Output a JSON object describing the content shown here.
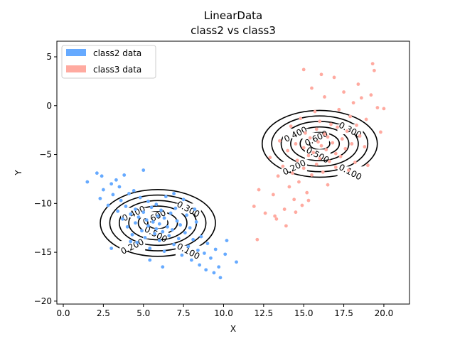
{
  "chart_data": {
    "type": "scatter",
    "title": "LinearData",
    "subtitle": "class2 vs  class3",
    "xlabel": "X",
    "ylabel": "Y",
    "xlim": [
      -0.4,
      21.6
    ],
    "ylim": [
      -20.3,
      6.6
    ],
    "xticks": [
      0.0,
      2.5,
      5.0,
      7.5,
      10.0,
      12.5,
      15.0,
      17.5,
      20.0
    ],
    "xtick_labels": [
      "0.0",
      "2.5",
      "5.0",
      "7.5",
      "10.0",
      "12.5",
      "15.0",
      "17.5",
      "20.0"
    ],
    "yticks": [
      -20,
      -15,
      -10,
      -5,
      0,
      5
    ],
    "ytick_labels": [
      "−20",
      "−15",
      "−10",
      "−5",
      "0",
      "5"
    ],
    "grid": false,
    "legend_position": "top-left",
    "series": [
      {
        "name": "class2 data",
        "color": "#66aaff",
        "points": [
          [
            1.5,
            -7.8
          ],
          [
            2.1,
            -6.9
          ],
          [
            2.3,
            -9.5
          ],
          [
            2.4,
            -7.2
          ],
          [
            2.5,
            -8.6
          ],
          [
            2.8,
            -10.2
          ],
          [
            3.0,
            -8.0
          ],
          [
            3.1,
            -9.1
          ],
          [
            3.3,
            -7.6
          ],
          [
            3.4,
            -10.8
          ],
          [
            3.5,
            -8.3
          ],
          [
            3.6,
            -9.7
          ],
          [
            3.7,
            -11.6
          ],
          [
            3.8,
            -7.1
          ],
          [
            3.9,
            -10.3
          ],
          [
            4.0,
            -12.4
          ],
          [
            4.1,
            -9.0
          ],
          [
            4.2,
            -11.1
          ],
          [
            4.3,
            -13.2
          ],
          [
            4.4,
            -8.7
          ],
          [
            4.5,
            -10.6
          ],
          [
            4.5,
            -12.0
          ],
          [
            4.6,
            -14.0
          ],
          [
            4.7,
            -11.4
          ],
          [
            4.8,
            -9.4
          ],
          [
            4.9,
            -12.8
          ],
          [
            5.0,
            -6.6
          ],
          [
            5.0,
            -10.9
          ],
          [
            5.1,
            -13.5
          ],
          [
            5.2,
            -11.7
          ],
          [
            5.3,
            -9.8
          ],
          [
            5.3,
            -12.3
          ],
          [
            5.4,
            -14.6
          ],
          [
            5.5,
            -10.4
          ],
          [
            5.6,
            -11.9
          ],
          [
            5.7,
            -13.1
          ],
          [
            5.8,
            -12.6
          ],
          [
            5.8,
            -10.1
          ],
          [
            5.9,
            -11.3
          ],
          [
            6.0,
            -12.1
          ],
          [
            6.0,
            -13.8
          ],
          [
            6.1,
            -10.7
          ],
          [
            6.2,
            -12.9
          ],
          [
            6.3,
            -11.5
          ],
          [
            6.3,
            -14.9
          ],
          [
            6.4,
            -9.3
          ],
          [
            6.5,
            -12.4
          ],
          [
            6.6,
            -13.3
          ],
          [
            6.7,
            -11.0
          ],
          [
            6.8,
            -12.7
          ],
          [
            6.9,
            -14.2
          ],
          [
            7.0,
            -10.5
          ],
          [
            7.1,
            -11.8
          ],
          [
            7.2,
            -13.6
          ],
          [
            7.3,
            -12.2
          ],
          [
            7.4,
            -15.3
          ],
          [
            7.5,
            -9.6
          ],
          [
            7.6,
            -13.0
          ],
          [
            7.7,
            -11.2
          ],
          [
            7.8,
            -14.4
          ],
          [
            7.9,
            -12.5
          ],
          [
            8.0,
            -15.8
          ],
          [
            8.1,
            -13.7
          ],
          [
            8.3,
            -11.9
          ],
          [
            8.4,
            -14.8
          ],
          [
            8.5,
            -16.3
          ],
          [
            8.6,
            -13.4
          ],
          [
            8.8,
            -15.1
          ],
          [
            8.9,
            -16.8
          ],
          [
            9.0,
            -14.1
          ],
          [
            9.2,
            -15.6
          ],
          [
            9.4,
            -17.1
          ],
          [
            9.5,
            -14.7
          ],
          [
            9.7,
            -16.5
          ],
          [
            9.8,
            -17.6
          ],
          [
            10.1,
            -15.2
          ],
          [
            10.2,
            -13.8
          ],
          [
            10.8,
            -16.0
          ],
          [
            6.2,
            -16.5
          ],
          [
            5.4,
            -15.8
          ],
          [
            4.2,
            -13.9
          ],
          [
            3.0,
            -14.6
          ],
          [
            6.9,
            -9.0
          ],
          [
            8.2,
            -10.6
          ]
        ]
      },
      {
        "name": "class3 data",
        "color": "#ffaaa0",
        "points": [
          [
            11.9,
            -10.3
          ],
          [
            12.1,
            -13.7
          ],
          [
            12.2,
            -8.6
          ],
          [
            12.6,
            -11.0
          ],
          [
            12.9,
            -5.3
          ],
          [
            13.1,
            -9.1
          ],
          [
            13.3,
            -11.6
          ],
          [
            13.4,
            -7.2
          ],
          [
            13.5,
            -3.6
          ],
          [
            13.7,
            -6.2
          ],
          [
            13.8,
            -10.6
          ],
          [
            13.9,
            -12.3
          ],
          [
            14.0,
            -4.6
          ],
          [
            14.1,
            -8.3
          ],
          [
            14.2,
            -2.1
          ],
          [
            14.3,
            -6.9
          ],
          [
            14.4,
            -9.6
          ],
          [
            14.5,
            -3.9
          ],
          [
            14.6,
            -5.6
          ],
          [
            14.7,
            -7.8
          ],
          [
            14.8,
            -1.3
          ],
          [
            14.9,
            -10.2
          ],
          [
            15.0,
            -4.3
          ],
          [
            15.0,
            -6.4
          ],
          [
            15.1,
            -2.8
          ],
          [
            15.2,
            -8.9
          ],
          [
            15.3,
            -5.1
          ],
          [
            15.4,
            -3.3
          ],
          [
            15.5,
            -7.1
          ],
          [
            15.5,
            1.8
          ],
          [
            15.6,
            -4.8
          ],
          [
            15.7,
            -0.6
          ],
          [
            15.8,
            -6.0
          ],
          [
            15.8,
            -2.4
          ],
          [
            15.9,
            -3.7
          ],
          [
            16.0,
            -5.4
          ],
          [
            16.0,
            -1.6
          ],
          [
            16.1,
            -4.1
          ],
          [
            16.2,
            -6.8
          ],
          [
            16.3,
            -2.9
          ],
          [
            16.3,
            0.9
          ],
          [
            16.4,
            -4.5
          ],
          [
            16.5,
            -3.2
          ],
          [
            16.5,
            -8.1
          ],
          [
            16.6,
            -5.7
          ],
          [
            16.7,
            -1.9
          ],
          [
            16.8,
            -3.8
          ],
          [
            16.9,
            2.9
          ],
          [
            17.0,
            -4.9
          ],
          [
            17.0,
            -6.3
          ],
          [
            17.1,
            -2.2
          ],
          [
            17.2,
            -0.4
          ],
          [
            17.3,
            -5.2
          ],
          [
            17.4,
            -3.4
          ],
          [
            17.5,
            1.4
          ],
          [
            17.6,
            -4.4
          ],
          [
            17.7,
            -2.6
          ],
          [
            17.8,
            -6.6
          ],
          [
            17.9,
            -1.1
          ],
          [
            18.0,
            -3.9
          ],
          [
            18.1,
            0.3
          ],
          [
            18.2,
            -5.8
          ],
          [
            18.3,
            -2.0
          ],
          [
            18.4,
            2.2
          ],
          [
            18.5,
            -3.1
          ],
          [
            18.6,
            0.8
          ],
          [
            18.8,
            -4.2
          ],
          [
            18.9,
            -1.4
          ],
          [
            19.0,
            -6.1
          ],
          [
            19.2,
            1.1
          ],
          [
            19.3,
            4.3
          ],
          [
            19.4,
            3.6
          ],
          [
            19.6,
            -0.2
          ],
          [
            19.8,
            -2.7
          ],
          [
            20.0,
            -0.3
          ],
          [
            15.0,
            3.7
          ],
          [
            16.1,
            3.2
          ],
          [
            14.5,
            -10.9
          ],
          [
            13.2,
            -11.3
          ],
          [
            15.3,
            -9.7
          ]
        ]
      }
    ],
    "contours": [
      {
        "center": [
          5.9,
          -12.0
        ],
        "levels": [
          0.1,
          0.2,
          0.3,
          0.4,
          0.5,
          0.6
        ],
        "labels": [
          {
            "text": "0.100",
            "level_index": 0
          },
          {
            "text": "0.200",
            "level_index": 1
          },
          {
            "text": "0.300",
            "level_index": 2
          },
          {
            "text": "0.400",
            "level_index": 3
          },
          {
            "text": "0.500",
            "level_index": 4
          },
          {
            "text": "0.600",
            "level_index": 5
          }
        ]
      },
      {
        "center": [
          16.0,
          -3.9
        ],
        "levels": [
          0.1,
          0.2,
          0.3,
          0.4,
          0.5,
          0.6
        ],
        "labels": [
          {
            "text": "0.100",
            "level_index": 0
          },
          {
            "text": "0.200",
            "level_index": 1
          },
          {
            "text": "0.300",
            "level_index": 2
          },
          {
            "text": "0.400",
            "level_index": 3
          },
          {
            "text": "0.500",
            "level_index": 4
          },
          {
            "text": "0.600",
            "level_index": 5
          }
        ]
      }
    ]
  }
}
